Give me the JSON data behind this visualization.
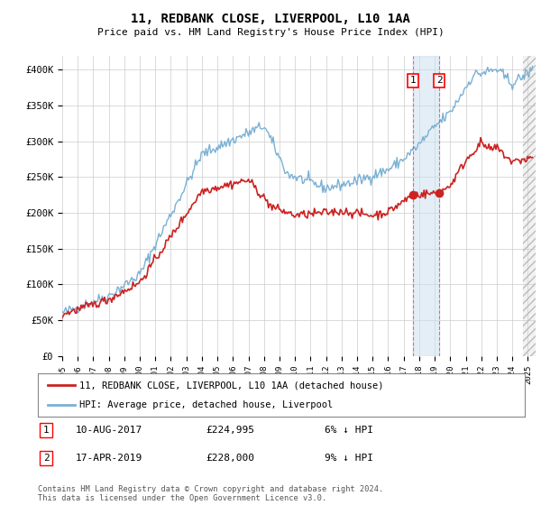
{
  "title": "11, REDBANK CLOSE, LIVERPOOL, L10 1AA",
  "subtitle": "Price paid vs. HM Land Registry's House Price Index (HPI)",
  "ylim": [
    0,
    420000
  ],
  "yticks": [
    0,
    50000,
    100000,
    150000,
    200000,
    250000,
    300000,
    350000,
    400000
  ],
  "xlim_start": 1995.0,
  "xlim_end": 2025.5,
  "hpi_color": "#7ab0d4",
  "hpi_fill_color": "#c8dff0",
  "price_color": "#cc2222",
  "transaction1_date": 2017.6,
  "transaction1_price": 224995,
  "transaction2_date": 2019.29,
  "transaction2_price": 228000,
  "legend_line1": "11, REDBANK CLOSE, LIVERPOOL, L10 1AA (detached house)",
  "legend_line2": "HPI: Average price, detached house, Liverpool",
  "table_row1": [
    "1",
    "10-AUG-2017",
    "£224,995",
    "6% ↓ HPI"
  ],
  "table_row2": [
    "2",
    "17-APR-2019",
    "£228,000",
    "9% ↓ HPI"
  ],
  "footnote": "Contains HM Land Registry data © Crown copyright and database right 2024.\nThis data is licensed under the Open Government Licence v3.0.",
  "background_color": "#ffffff",
  "grid_color": "#cccccc"
}
